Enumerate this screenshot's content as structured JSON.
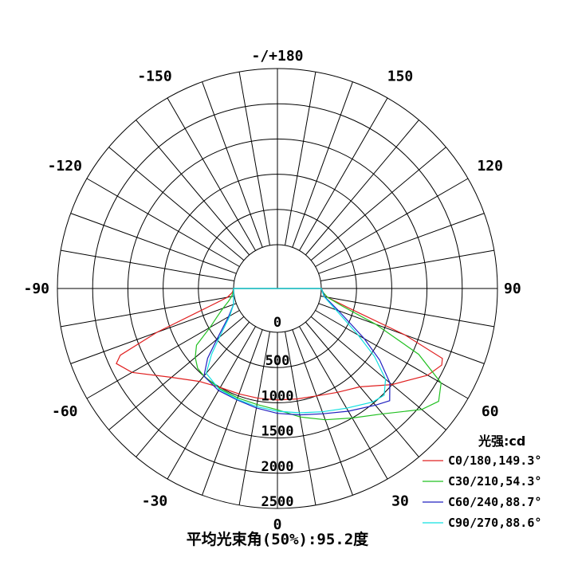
{
  "chart_data": {
    "type": "polar",
    "title": "",
    "radial_unit_label": "光强:cd",
    "radial_ticks": [
      "0",
      "500",
      "1000",
      "1500",
      "2000",
      "2500"
    ],
    "radial_tick_values": [
      0,
      500,
      1000,
      1500,
      2000,
      2500
    ],
    "r_max": 2500,
    "angle_ticks": [
      {
        "value": 180,
        "label": "-/+180"
      },
      {
        "value": 150,
        "label": "150"
      },
      {
        "value": 120,
        "label": "120"
      },
      {
        "value": 90,
        "label": "90"
      },
      {
        "value": 60,
        "label": "60"
      },
      {
        "value": 30,
        "label": "30"
      },
      {
        "value": 0,
        "label": "0"
      },
      {
        "value": -30,
        "label": "-30"
      },
      {
        "value": -60,
        "label": "-60"
      },
      {
        "value": -90,
        "label": "-90"
      },
      {
        "value": -120,
        "label": "-120"
      },
      {
        "value": -150,
        "label": "-150"
      }
    ],
    "spoke_step_deg": 10,
    "series": [
      {
        "name": "C0/180,149.3°",
        "color": "#e02020",
        "angles": [
          -90,
          -85,
          -80,
          -75,
          -70,
          -67,
          -65,
          -60,
          -50,
          -40,
          -30,
          -20,
          -10,
          0,
          10,
          20,
          30,
          40,
          50,
          60,
          65,
          67,
          70,
          75,
          80,
          85,
          90
        ],
        "values": [
          0,
          20,
          100,
          400,
          1200,
          1800,
          1900,
          1760,
          1340,
          1100,
          1000,
          970,
          960,
          960,
          970,
          1000,
          1080,
          1200,
          1500,
          1840,
          1950,
          1920,
          1300,
          400,
          100,
          20,
          0
        ]
      },
      {
        "name": "C30/210,54.3°",
        "color": "#22c022",
        "angles": [
          -90,
          -85,
          -80,
          -75,
          -70,
          -65,
          -60,
          -55,
          -50,
          -45,
          -40,
          -30,
          -20,
          -10,
          0,
          10,
          20,
          30,
          40,
          50,
          55,
          60,
          65,
          70,
          75,
          80,
          85,
          90
        ],
        "values": [
          0,
          10,
          40,
          100,
          200,
          320,
          480,
          780,
          900,
          980,
          1000,
          1020,
          1030,
          1050,
          1100,
          1230,
          1360,
          1500,
          1700,
          2050,
          2170,
          2060,
          1590,
          860,
          320,
          100,
          30,
          0
        ]
      },
      {
        "name": "C60/240,88.7°",
        "color": "#2020c0",
        "angles": [
          -90,
          -80,
          -70,
          -60,
          -50,
          -45,
          -40,
          -30,
          -20,
          -10,
          0,
          10,
          20,
          30,
          40,
          45,
          50,
          55,
          60,
          70,
          80,
          90
        ],
        "values": [
          0,
          10,
          40,
          180,
          500,
          780,
          1000,
          1050,
          1060,
          1100,
          1150,
          1200,
          1270,
          1390,
          1540,
          1630,
          1460,
          1150,
          800,
          300,
          60,
          0
        ]
      },
      {
        "name": "C90/270,88.6°",
        "color": "#10e0e0",
        "angles": [
          -90,
          -80,
          -70,
          -60,
          -50,
          -45,
          -40,
          -30,
          -20,
          -10,
          0,
          10,
          20,
          30,
          40,
          45,
          50,
          55,
          60,
          70,
          80,
          90
        ],
        "values": [
          0,
          10,
          40,
          160,
          450,
          700,
          950,
          1030,
          1050,
          1080,
          1120,
          1170,
          1240,
          1340,
          1480,
          1520,
          1380,
          1060,
          700,
          260,
          50,
          0
        ]
      }
    ],
    "legend_position": "bottom-right",
    "footer": "平均光束角(50%):95.2度"
  }
}
